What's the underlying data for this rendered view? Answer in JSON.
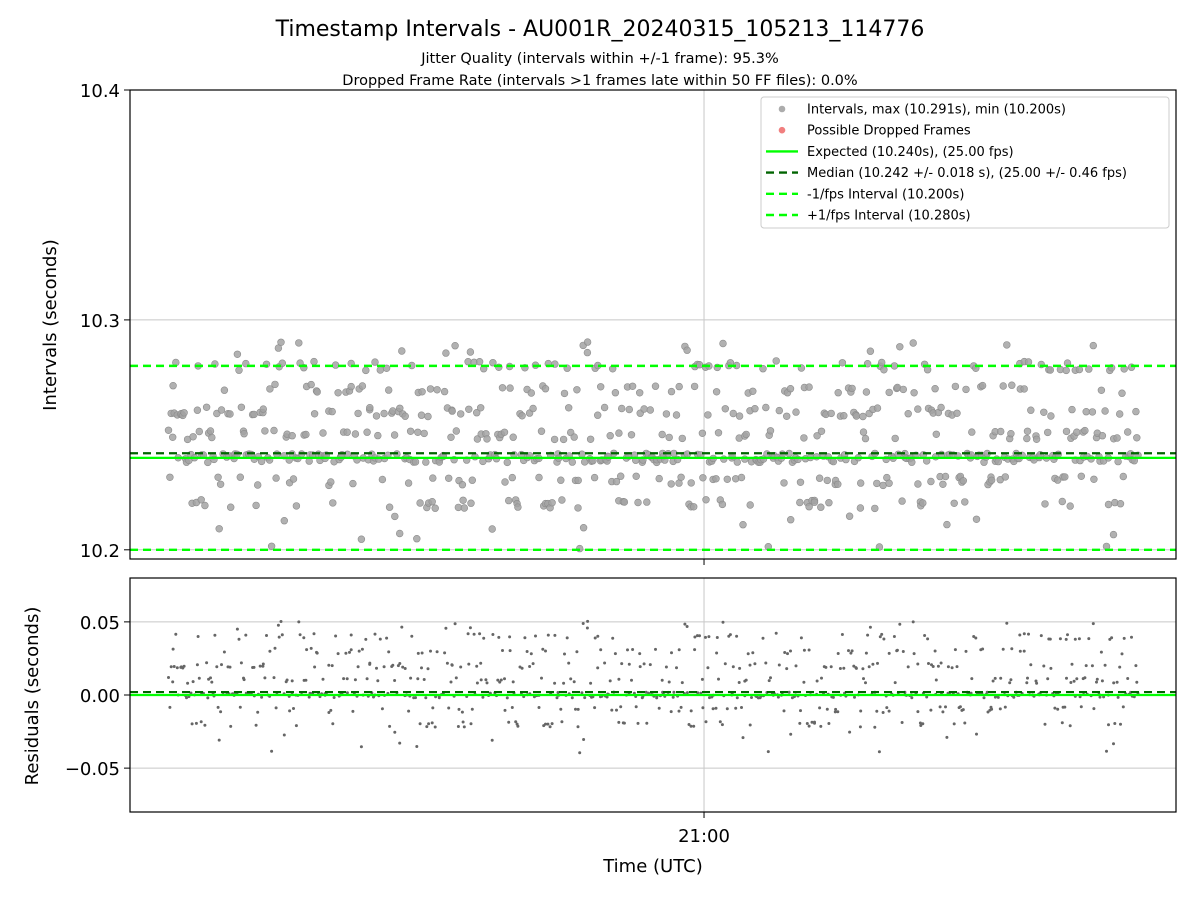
{
  "figure": {
    "title": "Timestamp Intervals - AU001R_20240315_105213_114776",
    "subtitle_line1": "Jitter Quality (intervals within +/-1 frame): 95.3%",
    "subtitle_line2": "Dropped Frame Rate (intervals >1 frames late within 50 FF files): 0.0%"
  },
  "colors": {
    "interval_points": "#a3a3a3",
    "interval_points_edge": "#8c8c8c",
    "dropped_points": "#f07171",
    "expected": "#00ff00",
    "median": "#006400",
    "fps_bounds": "#00ff00",
    "residual_points": "#666666",
    "grid": "#c8c8c8"
  },
  "chart_data": [
    {
      "type": "scatter",
      "panel": "intervals",
      "ylabel": "Intervals (seconds)",
      "xlabel": "",
      "ylim": [
        10.196,
        10.4
      ],
      "yticks": [
        10.2,
        10.3,
        10.4
      ],
      "ytick_labels": [
        "10.2",
        "10.3",
        "10.4"
      ],
      "grid": true,
      "legend_position": "top-right",
      "legend": [
        {
          "label": "Intervals, max (10.291s), min (10.200s)",
          "kind": "marker",
          "color": "#a3a3a3"
        },
        {
          "label": "Possible Dropped Frames",
          "kind": "marker",
          "color": "#f07171"
        },
        {
          "label": "Expected (10.240s), (25.00 fps)",
          "kind": "solid",
          "color": "#00ff00"
        },
        {
          "label": "Median (10.242 +/- 0.018 s), (25.00 +/- 0.46 fps)",
          "kind": "dashed",
          "color": "#006400"
        },
        {
          "label": "-1/fps Interval (10.200s)",
          "kind": "dashed",
          "color": "#00ff00"
        },
        {
          "label": "+1/fps Interval (10.280s)",
          "kind": "dashed",
          "color": "#00ff00"
        }
      ],
      "series": [
        {
          "name": "Intervals, max (10.291s), min (10.200s)",
          "count": 740,
          "max": 10.291,
          "min": 10.2
        },
        {
          "name": "Possible Dropped Frames",
          "count": 0
        }
      ],
      "reference_lines": {
        "expected": 10.24,
        "median": 10.242,
        "minus_1_fps": 10.2,
        "plus_1_fps": 10.28
      },
      "value_levels": [
        10.22,
        10.23,
        10.24,
        10.25,
        10.26,
        10.27,
        10.28
      ],
      "value_weights": [
        0.1,
        0.1,
        0.35,
        0.13,
        0.14,
        0.09,
        0.09
      ],
      "x_range_minutes": [
        -45,
        37
      ],
      "xticks": [
        0
      ],
      "xtick_labels": [
        "21:00"
      ]
    },
    {
      "type": "scatter",
      "panel": "residuals",
      "ylabel": "Residuals (seconds)",
      "xlabel": "Time (UTC)",
      "ylim": [
        -0.08,
        0.08
      ],
      "yticks": [
        -0.05,
        0.0,
        0.05
      ],
      "ytick_labels": [
        "−0.05",
        "0.00",
        "0.05"
      ],
      "grid": true,
      "series": [
        {
          "name": "Residuals",
          "count": 740
        }
      ],
      "reference_lines": {
        "zero": 0.0,
        "median_offset": 0.002
      },
      "x_range_minutes": [
        -45,
        37
      ],
      "xticks": [
        0
      ],
      "xtick_labels": [
        "21:00"
      ]
    }
  ]
}
